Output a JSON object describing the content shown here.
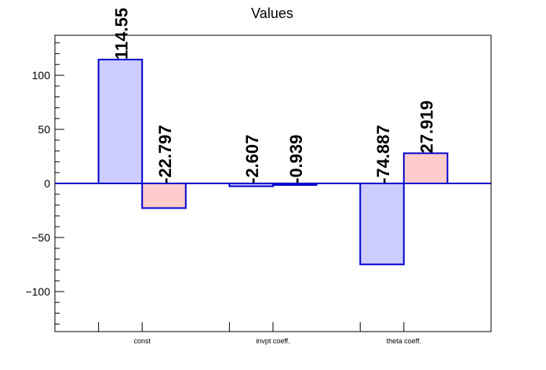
{
  "chart_data": {
    "type": "bar",
    "title": "Values",
    "xlabel": "",
    "ylabel": "",
    "categories": [
      "const",
      "invpt coeff.",
      "theta coeff."
    ],
    "series": [
      {
        "values": [
          114.55,
          -2.607,
          -74.887
        ],
        "color": "#ccccff"
      },
      {
        "values": [
          -22.797,
          -0.939,
          27.919
        ],
        "color": "#ffcccc"
      }
    ],
    "bar_labels": [
      [
        "114.55",
        "-2.607",
        "-74.887"
      ],
      [
        "-22.797",
        "-0.939",
        "27.919"
      ]
    ],
    "ylim": [
      -137,
      137
    ],
    "y_ticks": [
      -100,
      -50,
      0,
      50,
      100
    ],
    "y_tick_labels": [
      "−100",
      "−50",
      "0",
      "50",
      "100"
    ],
    "grid": false,
    "colors": {
      "outline": "#0000cc",
      "frame": "#000000"
    }
  }
}
